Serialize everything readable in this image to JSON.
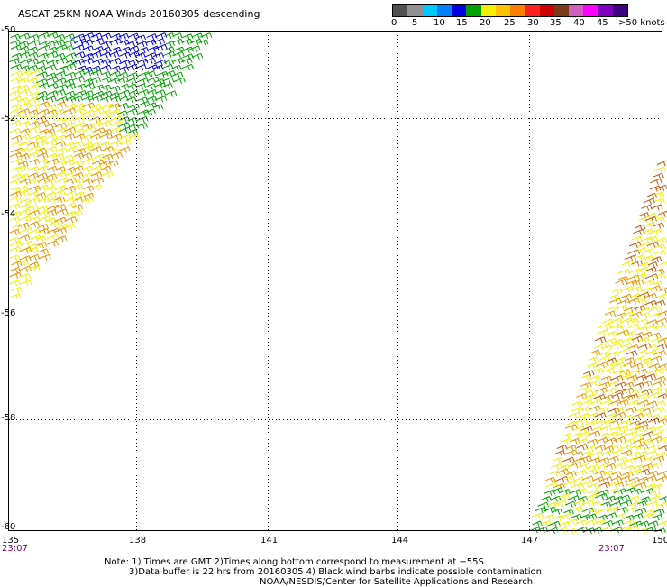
{
  "header": {
    "title": "ASCAT 25KM NOAA Winds 20160305 descending"
  },
  "legend": {
    "labels": [
      "0",
      "5",
      "10",
      "15",
      "20",
      "25",
      "30",
      "35",
      "40",
      "45",
      ">50 knots"
    ],
    "colors": [
      "#505050",
      "#909090",
      "#00c8ff",
      "#0080ff",
      "#0000e0",
      "#00a000",
      "#f0f000",
      "#ffc000",
      "#ff8000",
      "#ff2020",
      "#d00000",
      "#7a3c18",
      "#d060c0",
      "#ff00ff",
      "#8000c0",
      "#3c0080"
    ]
  },
  "map": {
    "lat_labels": [
      "-50",
      "-52",
      "-54",
      "-56",
      "-58",
      "-60"
    ],
    "lon_labels": [
      "135",
      "138",
      "141",
      "144",
      "147",
      "150"
    ],
    "time_labels": [
      "23:07",
      "23:07"
    ],
    "barb_colors": {
      "blue": "#0000e0",
      "green": "#00a000",
      "yellow": "#f0f000",
      "orange": "#e89000",
      "brown": "#c05a10"
    }
  },
  "footer": {
    "note_line1": "Note: 1) Times are GMT 2)Times along bottom correspond to measurement at −55S",
    "note_line2": "3)Data buffer is 22 hrs from 20160305 4) Black wind barbs indicate possible contamination",
    "note_line3": "NOAA/NESDIS/Center for Satellite Applications and Research"
  }
}
